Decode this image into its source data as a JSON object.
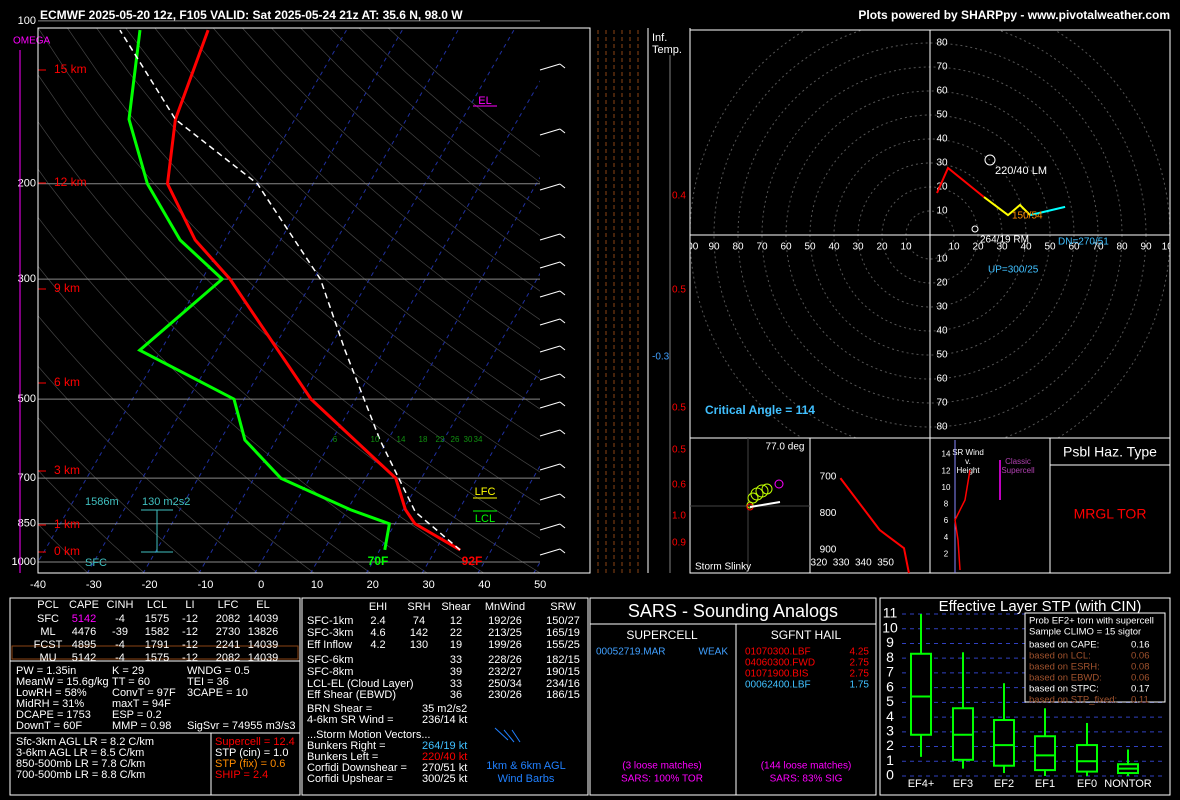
{
  "header": {
    "left": "ECMWF 2025-05-20 12z, F105  VALID: Sat 2025-05-24 21z  AT: 35.6 N, 98.0 W",
    "right": "Plots powered by SHARPpy - www.pivotalweather.com"
  },
  "skewt": {
    "type": "skewt",
    "omega_label": "OMEGA",
    "xlim": [
      -40,
      50
    ],
    "xticks": [
      -40,
      -30,
      -20,
      -10,
      0,
      10,
      20,
      30,
      40,
      50
    ],
    "ylim": [
      1050,
      100
    ],
    "yticks": [
      1000,
      850,
      700,
      500,
      300,
      200,
      100
    ],
    "log_y": true,
    "height_labels": [
      "15 km",
      "12 km",
      "9 km",
      "6 km",
      "3 km",
      "1 km",
      "0 km"
    ],
    "series": [
      {
        "color": "#ff0000",
        "pressure": [
          950,
          850,
          800,
          700,
          500,
          300,
          254,
          200,
          152,
          104
        ],
        "values": [
          34.4,
          23.6,
          20.4,
          15.4,
          -8,
          -35,
          -45.3,
          -56.1,
          -61.4,
          -64.8
        ]
      },
      {
        "color": "#00ff00",
        "pressure": [
          950,
          850,
          800,
          700,
          595,
          500,
          406,
          300,
          254,
          200,
          152,
          104
        ],
        "values": [
          20.9,
          19,
          10.5,
          -5.2,
          -15.6,
          -21.8,
          -43.8,
          -36.4,
          -48,
          -59.7,
          -69.7,
          -77
        ]
      },
      {
        "color": "#ffffff",
        "style": "dashed",
        "pressure": [
          950,
          808,
          595,
          406,
          300,
          200,
          152,
          104
        ],
        "values": [
          34.4,
          22.4,
          8.6,
          -7,
          -18.8,
          -40,
          -61.4,
          -80.6
        ]
      }
    ],
    "annotations": {
      "el": "EL",
      "lfc": "LFC",
      "lcl": "LCL",
      "inflow_depth": "1586m",
      "inflow_srh": "130 m2s2",
      "sfc": "SFC",
      "sfc_dewpoint": "70F",
      "sfc_temp": "92F"
    },
    "mixing_ratio_labels": [
      6,
      10,
      14,
      18,
      22,
      26,
      30,
      34
    ],
    "inferred_temp": {
      "title": [
        "Inf.",
        "Temp."
      ],
      "values": [
        "0.4",
        "0.5",
        "-0.3",
        "0.5",
        "0.5",
        "0.6",
        "1.0",
        "0.9"
      ]
    }
  },
  "hodograph": {
    "rings": [
      10,
      20,
      30,
      40,
      50,
      60,
      70,
      80,
      90,
      100
    ],
    "series": [
      {
        "color": "#ff0000",
        "u": [
          2.9,
          7.5,
          22.5
        ],
        "v": [
          17.5,
          27.9,
          15.8
        ]
      },
      {
        "color": "#ffff00",
        "u": [
          22.5,
          32.5,
          37.5,
          41.7
        ],
        "v": [
          15.8,
          8.3,
          12.5,
          8.3
        ]
      },
      {
        "color": "#00ffff",
        "u": [
          41.7,
          56.3
        ],
        "v": [
          8.3,
          11.7
        ]
      }
    ],
    "labels": {
      "lm": "220/40 LM",
      "rm": "264/19 RM",
      "dn": "DN=270/51",
      "up": "UP=300/25",
      "mean": "150/54"
    },
    "critical_angle": "Critical Angle = 114"
  },
  "slinky": {
    "angle": "77.0 deg",
    "title": "Storm Slinky"
  },
  "thetae": {
    "xlim": [
      316,
      370
    ],
    "ylim": [
      593,
      963
    ],
    "xticks": [
      320,
      330,
      340,
      350
    ],
    "yticks": [
      700,
      800,
      900
    ],
    "color": "#ff0000",
    "pressure": [
      703,
      845,
      895,
      963
    ],
    "values": [
      329.7,
      347.3,
      358.3,
      360.5
    ]
  },
  "srwind": {
    "title": [
      "SR Wind",
      "v.",
      "Height"
    ],
    "note": [
      "Classic",
      "Supercell"
    ],
    "ylim": [
      0,
      16
    ],
    "yticks": [
      2,
      4,
      6,
      8,
      10,
      12,
      14
    ]
  },
  "hazard": {
    "title": "Psbl Haz. Type",
    "value": "MRGL TOR"
  },
  "parcels": {
    "columns": [
      "PCL",
      "CAPE",
      "CINH",
      "LCL",
      "LI",
      "LFC",
      "EL"
    ],
    "rows": [
      [
        "SFC",
        5142,
        -4,
        1575,
        -12,
        2082,
        14039
      ],
      [
        "ML",
        4476,
        -39,
        1582,
        -12,
        2730,
        13826
      ],
      [
        "FCST",
        4895,
        -4,
        1791,
        -12,
        2241,
        14039
      ],
      [
        "MU",
        5142,
        -4,
        1575,
        -12,
        2082,
        14039
      ]
    ]
  },
  "indices": {
    "col1": [
      "PW = 1.35in",
      "MeanW = 15.6g/kg",
      "LowRH = 58%",
      "MidRH = 31%",
      "DCAPE = 1753",
      "DownT = 60F"
    ],
    "col2": [
      "K = 29",
      "TT = 60",
      "ConvT = 97F",
      "maxT = 94F",
      "ESP = 0.2",
      "MMP = 0.98"
    ],
    "col3": [
      "WNDG = 0.5",
      "TEI = 36",
      "3CAPE = 10",
      "SigSvr = 74955 m3/s3"
    ]
  },
  "lapse_rates": [
    "Sfc-3km AGL LR = 8.2 C/km",
    "3-6km AGL LR = 8.5 C/km",
    "850-500mb LR = 7.8 C/km",
    "700-500mb LR = 8.8 C/km"
  ],
  "params": [
    "Supercell = 12.4",
    "STP (cin) = 1.0",
    "STP (fix) = 0.6",
    "SHIP = 2.4"
  ],
  "kinematics": {
    "columns": [
      "EHI",
      "SRH",
      "Shear",
      "MnWind",
      "SRW"
    ],
    "rows": [
      [
        "SFC-1km",
        2.4,
        74,
        12,
        "192/26",
        "150/27"
      ],
      [
        "SFC-3km",
        4.6,
        142,
        22,
        "213/25",
        "165/19"
      ],
      [
        "Eff Inflow",
        4.2,
        130,
        19,
        "199/26",
        "155/25"
      ],
      [
        "SFC-6km",
        null,
        null,
        33,
        "228/26",
        "182/15"
      ],
      [
        "SFC-8km",
        null,
        null,
        39,
        "232/27",
        "190/15"
      ],
      [
        "LCL-EL (Cloud Layer)",
        null,
        null,
        33,
        "250/34",
        "234/16"
      ],
      [
        "Eff Shear (EBWD)",
        null,
        null,
        36,
        "230/26",
        "186/15"
      ]
    ],
    "extra": [
      [
        "BRN Shear =",
        "35 m2/s2"
      ],
      [
        "4-6km SR Wind =",
        "236/14 kt"
      ]
    ],
    "motion_title": "...Storm Motion Vectors...",
    "motion": [
      [
        "Bunkers Right =",
        "264/19 kt"
      ],
      [
        "Bunkers Left =",
        "220/40 kt"
      ],
      [
        "Corfidi Downshear =",
        "270/51 kt"
      ],
      [
        "Corfidi Upshear =",
        "300/25 kt"
      ]
    ],
    "barb_note": [
      "1km & 6km AGL",
      "Wind Barbs"
    ]
  },
  "sars": {
    "title": "SARS - Sounding Analogs",
    "supercell": {
      "title": "SUPERCELL",
      "matches": [
        [
          "00052719.MAR",
          "WEAK"
        ]
      ],
      "loose": "(3 loose matches)",
      "summary": "SARS: 100% TOR"
    },
    "hail": {
      "title": "SGFNT HAIL",
      "matches": [
        [
          "01070300.LBF",
          "4.25"
        ],
        [
          "04060300.FWD",
          "2.75"
        ],
        [
          "01071900.BIS",
          "2.75"
        ],
        [
          "00062400.LBF",
          "1.75"
        ]
      ],
      "loose": "(144 loose matches)",
      "summary": "SARS: 83% SIG"
    }
  },
  "stp": {
    "title": "Effective Layer STP (with CIN)",
    "ylim": [
      0,
      11
    ],
    "yticks": [
      0,
      1,
      2,
      3,
      4,
      5,
      6,
      7,
      8,
      9,
      10,
      11
    ],
    "categories": [
      "EF4+",
      "EF3",
      "EF2",
      "EF1",
      "EF0",
      "NONTOR"
    ],
    "color": "#00ff00",
    "boxes": [
      [
        1.3,
        2.8,
        5.4,
        8.3,
        11
      ],
      [
        0.5,
        1.1,
        2.8,
        4.6,
        8.4
      ],
      [
        0.2,
        0.7,
        2.1,
        3.8,
        6.3
      ],
      [
        0,
        0.4,
        1.4,
        2.7,
        4.6
      ],
      [
        0,
        0.3,
        1.0,
        2.1,
        3.6
      ],
      [
        0,
        0.2,
        0.5,
        0.8,
        1.8
      ]
    ],
    "legend": {
      "lines": [
        "Prob EF2+ torn with supercell",
        "Sample CLIMO = 15 sigtor"
      ],
      "rows": [
        [
          "based on CAPE:",
          "0.16"
        ],
        [
          "based on LCL:",
          "0.06"
        ],
        [
          "based on ESRH:",
          "0.08"
        ],
        [
          "based on EBWD:",
          "0.06"
        ],
        [
          "based on STPC:",
          "0.17"
        ],
        [
          "based on STP_fixed:",
          "0.11"
        ]
      ]
    }
  }
}
